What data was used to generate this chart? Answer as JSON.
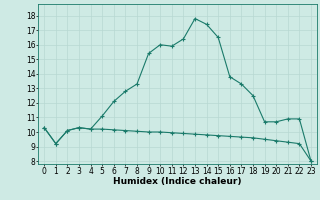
{
  "xlabel": "Humidex (Indice chaleur)",
  "background_color": "#ceeae4",
  "line_color": "#1a7a6a",
  "x_line1": [
    0,
    1,
    2,
    3,
    4,
    5,
    6,
    7,
    8,
    9,
    10,
    11,
    12,
    13,
    14,
    15,
    16,
    17,
    18,
    19,
    20,
    21,
    22,
    23
  ],
  "y_line1": [
    10.3,
    9.2,
    10.1,
    10.3,
    10.2,
    10.2,
    10.15,
    10.1,
    10.05,
    10.0,
    10.0,
    9.95,
    9.9,
    9.85,
    9.8,
    9.75,
    9.7,
    9.65,
    9.6,
    9.5,
    9.4,
    9.3,
    9.2,
    8.0
  ],
  "x_line2": [
    0,
    1,
    2,
    3,
    4,
    5,
    6,
    7,
    8,
    9,
    10,
    11,
    12,
    13,
    14,
    15,
    16,
    17,
    18,
    19,
    20,
    21,
    22,
    23
  ],
  "y_line2": [
    10.3,
    9.2,
    10.1,
    10.3,
    10.2,
    11.1,
    12.1,
    12.8,
    13.3,
    15.4,
    16.0,
    15.9,
    16.4,
    17.8,
    17.4,
    16.5,
    13.8,
    13.3,
    12.5,
    10.7,
    10.7,
    10.9,
    10.9,
    8.0
  ],
  "xlim": [
    -0.5,
    23.5
  ],
  "ylim_min": 7.8,
  "ylim_max": 18.8,
  "yticks": [
    8,
    9,
    10,
    11,
    12,
    13,
    14,
    15,
    16,
    17,
    18
  ],
  "xticks": [
    0,
    1,
    2,
    3,
    4,
    5,
    6,
    7,
    8,
    9,
    10,
    11,
    12,
    13,
    14,
    15,
    16,
    17,
    18,
    19,
    20,
    21,
    22,
    23
  ],
  "grid_color": "#b8d8d2",
  "label_fontsize": 6.5,
  "tick_fontsize": 5.5
}
